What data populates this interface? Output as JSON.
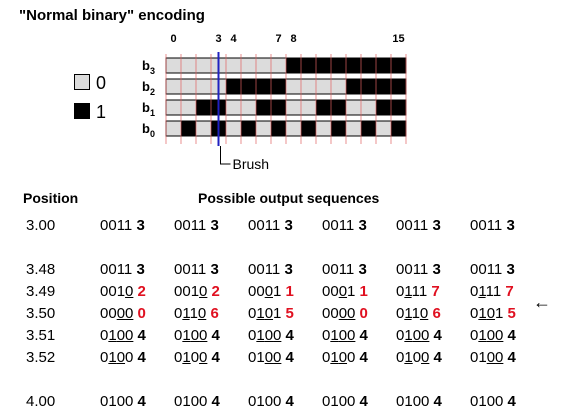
{
  "title": "\"Normal binary\" encoding",
  "top_ticks": [
    "0",
    "3",
    "4",
    "7",
    "8",
    "15"
  ],
  "legend": [
    {
      "label": "0",
      "color": "#dcdcdc"
    },
    {
      "label": "1",
      "color": "#000000"
    }
  ],
  "rows": [
    {
      "label": "b",
      "sub": "3",
      "bits": [
        0,
        0,
        0,
        0,
        0,
        0,
        0,
        0,
        1,
        1,
        1,
        1,
        1,
        1,
        1,
        1
      ]
    },
    {
      "label": "b",
      "sub": "2",
      "bits": [
        0,
        0,
        0,
        0,
        1,
        1,
        1,
        1,
        0,
        0,
        0,
        0,
        1,
        1,
        1,
        1
      ]
    },
    {
      "label": "b",
      "sub": "1",
      "bits": [
        0,
        0,
        1,
        1,
        0,
        0,
        1,
        1,
        0,
        0,
        1,
        1,
        0,
        0,
        1,
        1
      ]
    },
    {
      "label": "b",
      "sub": "0",
      "bits": [
        0,
        1,
        0,
        1,
        0,
        1,
        0,
        1,
        0,
        1,
        0,
        1,
        0,
        1,
        0,
        1
      ]
    }
  ],
  "brush_label": "Brush",
  "colors": {
    "red": "#e01020",
    "gray": "#dcdcdc",
    "black": "#000000",
    "brush": "#2020c0",
    "grid": "#e06060"
  },
  "headers": {
    "position": "Position",
    "sequences": "Possible output sequences"
  },
  "table": [
    {
      "pos": "3.00",
      "cells": [
        {
          "bits": "0011",
          "underline": [],
          "digit": "3",
          "red": false
        },
        {
          "bits": "0011",
          "underline": [],
          "digit": "3",
          "red": false
        },
        {
          "bits": "0011",
          "underline": [],
          "digit": "3",
          "red": false
        },
        {
          "bits": "0011",
          "underline": [],
          "digit": "3",
          "red": false
        },
        {
          "bits": "0011",
          "underline": [],
          "digit": "3",
          "red": false
        },
        {
          "bits": "0011",
          "underline": [],
          "digit": "3",
          "red": false
        }
      ]
    },
    {
      "spacer": true
    },
    {
      "pos": "3.48",
      "cells": [
        {
          "bits": "0011",
          "underline": [],
          "digit": "3",
          "red": false
        },
        {
          "bits": "0011",
          "underline": [],
          "digit": "3",
          "red": false
        },
        {
          "bits": "0011",
          "underline": [],
          "digit": "3",
          "red": false
        },
        {
          "bits": "0011",
          "underline": [],
          "digit": "3",
          "red": false
        },
        {
          "bits": "0011",
          "underline": [],
          "digit": "3",
          "red": false
        },
        {
          "bits": "0011",
          "underline": [],
          "digit": "3",
          "red": false
        }
      ]
    },
    {
      "pos": "3.49",
      "cells": [
        {
          "bits": "0010",
          "underline": [
            3
          ],
          "digit": "2",
          "red": true
        },
        {
          "bits": "0010",
          "underline": [
            3
          ],
          "digit": "2",
          "red": true
        },
        {
          "bits": "0001",
          "underline": [
            2
          ],
          "digit": "1",
          "red": true
        },
        {
          "bits": "0001",
          "underline": [
            2
          ],
          "digit": "1",
          "red": true
        },
        {
          "bits": "0111",
          "underline": [
            1
          ],
          "digit": "7",
          "red": true
        },
        {
          "bits": "0111",
          "underline": [
            1
          ],
          "digit": "7",
          "red": true
        }
      ]
    },
    {
      "pos": "3.50",
      "cells": [
        {
          "bits": "0000",
          "underline": [
            2,
            3
          ],
          "digit": "0",
          "red": true
        },
        {
          "bits": "0110",
          "underline": [
            1,
            3
          ],
          "digit": "6",
          "red": true
        },
        {
          "bits": "0101",
          "underline": [
            1,
            2
          ],
          "digit": "5",
          "red": true
        },
        {
          "bits": "0000",
          "underline": [
            2,
            3
          ],
          "digit": "0",
          "red": true
        },
        {
          "bits": "0110",
          "underline": [
            1,
            3
          ],
          "digit": "6",
          "red": true
        },
        {
          "bits": "0101",
          "underline": [
            1,
            2
          ],
          "digit": "5",
          "red": true
        }
      ]
    },
    {
      "pos": "3.51",
      "cells": [
        {
          "bits": "0100",
          "underline": [
            1,
            2,
            3
          ],
          "digit": "4",
          "red": false
        },
        {
          "bits": "0100",
          "underline": [
            1,
            2,
            3
          ],
          "digit": "4",
          "red": false
        },
        {
          "bits": "0100",
          "underline": [
            1,
            2,
            3
          ],
          "digit": "4",
          "red": false
        },
        {
          "bits": "0100",
          "underline": [
            1,
            2,
            3
          ],
          "digit": "4",
          "red": false
        },
        {
          "bits": "0100",
          "underline": [
            1,
            2,
            3
          ],
          "digit": "4",
          "red": false
        },
        {
          "bits": "0100",
          "underline": [
            1,
            2,
            3
          ],
          "digit": "4",
          "red": false
        }
      ]
    },
    {
      "pos": "3.52",
      "cells": [
        {
          "bits": "0100",
          "underline": [
            1,
            2
          ],
          "digit": "4",
          "red": false
        },
        {
          "bits": "0100",
          "underline": [
            1,
            3
          ],
          "digit": "4",
          "red": false
        },
        {
          "bits": "0100",
          "underline": [
            2,
            3
          ],
          "digit": "4",
          "red": false
        },
        {
          "bits": "0100",
          "underline": [
            1,
            2
          ],
          "digit": "4",
          "red": false
        },
        {
          "bits": "0100",
          "underline": [
            1,
            3
          ],
          "digit": "4",
          "red": false
        },
        {
          "bits": "0100",
          "underline": [
            2,
            3
          ],
          "digit": "4",
          "red": false
        }
      ]
    },
    {
      "spacer": true
    },
    {
      "pos": "4.00",
      "cells": [
        {
          "bits": "0100",
          "underline": [],
          "digit": "4",
          "red": false
        },
        {
          "bits": "0100",
          "underline": [],
          "digit": "4",
          "red": false
        },
        {
          "bits": "0100",
          "underline": [],
          "digit": "4",
          "red": false
        },
        {
          "bits": "0100",
          "underline": [],
          "digit": "4",
          "red": false
        },
        {
          "bits": "0100",
          "underline": [],
          "digit": "4",
          "red": false
        },
        {
          "bits": "0100",
          "underline": [],
          "digit": "4",
          "red": false
        }
      ]
    }
  ],
  "arrow_icon": "left-arrow-icon",
  "arrow_glyph": "←"
}
